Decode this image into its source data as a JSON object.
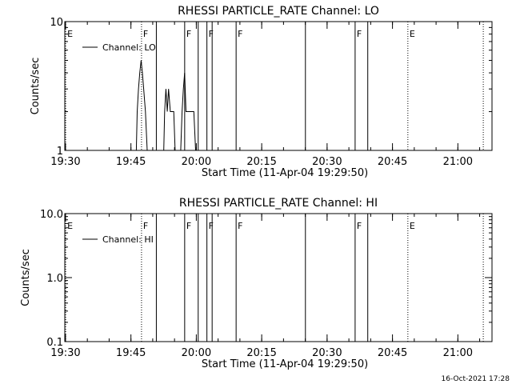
{
  "footer": {
    "timestamp": "16-Oct-2021 17:28"
  },
  "chart_data": [
    {
      "type": "line",
      "title": "RHESSI PARTICLE_RATE Channel: LO",
      "xlabel": "Start Time (11-Apr-04 19:29:50)",
      "ylabel": "Counts/sec",
      "x_unit": "minutes after 19:29:50",
      "xlim": [
        0,
        98
      ],
      "ylim": [
        1,
        10
      ],
      "y_scale": "log",
      "x_ticks": [
        {
          "value": 0.17,
          "label": "19:30"
        },
        {
          "value": 15.17,
          "label": "19:45"
        },
        {
          "value": 30.17,
          "label": "20:00"
        },
        {
          "value": 45.17,
          "label": "20:15"
        },
        {
          "value": 60.17,
          "label": "20:30"
        },
        {
          "value": 75.17,
          "label": "20:45"
        },
        {
          "value": 90.17,
          "label": "21:00"
        }
      ],
      "y_ticks": [
        {
          "value": 1,
          "label": "1"
        },
        {
          "value": 10,
          "label": "10"
        }
      ],
      "legend": {
        "position": "top-left",
        "entries": [
          "Channel: LO"
        ]
      },
      "flags": [
        {
          "x": 0.2,
          "label": "E",
          "style": "dotted"
        },
        {
          "x": 17.6,
          "label": "F",
          "style": "dotted"
        },
        {
          "x": 21.0,
          "label": "",
          "style": "solid"
        },
        {
          "x": 27.5,
          "label": "F",
          "style": "solid"
        },
        {
          "x": 30.6,
          "label": "",
          "style": "solid"
        },
        {
          "x": 32.6,
          "label": "F",
          "style": "solid"
        },
        {
          "x": 33.8,
          "label": "",
          "style": "solid"
        },
        {
          "x": 39.3,
          "label": "F",
          "style": "solid"
        },
        {
          "x": 55.2,
          "label": "",
          "style": "solid"
        },
        {
          "x": 66.6,
          "label": "F",
          "style": "solid"
        },
        {
          "x": 69.5,
          "label": "",
          "style": "solid"
        },
        {
          "x": 78.7,
          "label": "E",
          "style": "dotted"
        },
        {
          "x": 96.0,
          "label": "",
          "style": "dotted"
        }
      ],
      "series": [
        {
          "name": "Channel: LO",
          "points": [
            [
              16.4,
              1.0
            ],
            [
              16.6,
              2.0
            ],
            [
              16.9,
              3.0
            ],
            [
              17.2,
              4.0
            ],
            [
              17.5,
              5.0
            ],
            [
              17.8,
              4.0
            ],
            [
              18.1,
              3.0
            ],
            [
              18.5,
              2.0
            ],
            [
              18.9,
              1.0
            ],
            [
              22.7,
              1.0
            ],
            [
              22.9,
              2.0
            ],
            [
              23.2,
              3.0
            ],
            [
              23.5,
              2.0
            ],
            [
              23.8,
              3.0
            ],
            [
              24.2,
              2.0
            ],
            [
              24.6,
              2.0
            ],
            [
              25.0,
              2.0
            ],
            [
              25.3,
              1.0
            ],
            [
              26.6,
              1.0
            ],
            [
              26.9,
              2.0
            ],
            [
              27.2,
              3.0
            ],
            [
              27.5,
              4.0
            ],
            [
              27.8,
              2.0
            ],
            [
              28.2,
              2.0
            ],
            [
              29.0,
              2.0
            ],
            [
              29.6,
              2.0
            ],
            [
              30.0,
              1.0
            ]
          ]
        }
      ]
    },
    {
      "type": "line",
      "title": "RHESSI PARTICLE_RATE Channel: HI",
      "xlabel": "Start Time (11-Apr-04 19:29:50)",
      "ylabel": "Counts/sec",
      "x_unit": "minutes after 19:29:50",
      "xlim": [
        0,
        98
      ],
      "ylim": [
        0.1,
        10
      ],
      "y_scale": "log",
      "x_ticks": [
        {
          "value": 0.17,
          "label": "19:30"
        },
        {
          "value": 15.17,
          "label": "19:45"
        },
        {
          "value": 30.17,
          "label": "20:00"
        },
        {
          "value": 45.17,
          "label": "20:15"
        },
        {
          "value": 60.17,
          "label": "20:30"
        },
        {
          "value": 75.17,
          "label": "20:45"
        },
        {
          "value": 90.17,
          "label": "21:00"
        }
      ],
      "y_ticks": [
        {
          "value": 0.1,
          "label": "0.1"
        },
        {
          "value": 1.0,
          "label": "1.0"
        },
        {
          "value": 10.0,
          "label": "10.0"
        }
      ],
      "legend": {
        "position": "top-left",
        "entries": [
          "Channel: HI"
        ]
      },
      "flags": [
        {
          "x": 0.2,
          "label": "E",
          "style": "dotted"
        },
        {
          "x": 17.6,
          "label": "F",
          "style": "dotted"
        },
        {
          "x": 21.0,
          "label": "",
          "style": "solid"
        },
        {
          "x": 27.5,
          "label": "F",
          "style": "solid"
        },
        {
          "x": 30.6,
          "label": "",
          "style": "solid"
        },
        {
          "x": 32.6,
          "label": "F",
          "style": "solid"
        },
        {
          "x": 33.8,
          "label": "",
          "style": "solid"
        },
        {
          "x": 39.3,
          "label": "F",
          "style": "solid"
        },
        {
          "x": 55.2,
          "label": "",
          "style": "solid"
        },
        {
          "x": 66.6,
          "label": "F",
          "style": "solid"
        },
        {
          "x": 69.5,
          "label": "",
          "style": "solid"
        },
        {
          "x": 78.7,
          "label": "E",
          "style": "dotted"
        },
        {
          "x": 96.0,
          "label": "",
          "style": "dotted"
        }
      ],
      "series": [
        {
          "name": "Channel: HI",
          "points": []
        }
      ]
    }
  ]
}
